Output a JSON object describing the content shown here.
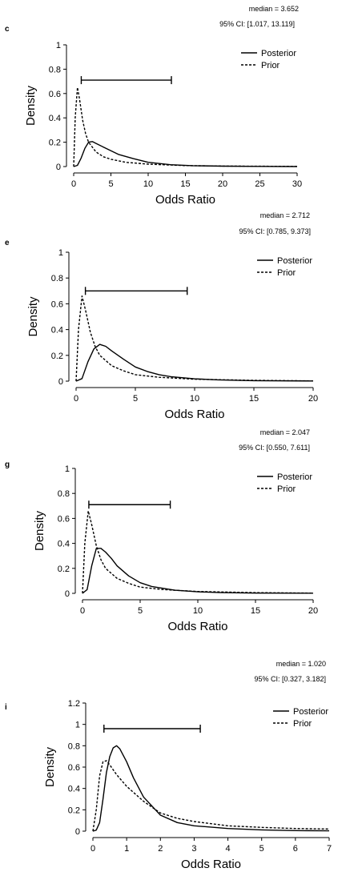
{
  "chart_data": [
    {
      "type": "line",
      "panel_label": "c",
      "annotation_median": "median = 3.652",
      "annotation_ci": "95% CI: [1.017, 13.119]",
      "xlabel": "Odds Ratio",
      "ylabel": "Density",
      "xlim": [
        0,
        30
      ],
      "ylim": [
        0,
        1
      ],
      "xticks": [
        "0",
        "5",
        "10",
        "15",
        "20",
        "25",
        "30"
      ],
      "yticks": [
        "0",
        "0.2",
        "0.4",
        "0.6",
        "0.8",
        "1"
      ],
      "ci_interval": [
        1.017,
        13.119
      ],
      "ci_level_y": 0.71,
      "legend": {
        "position": "top-right",
        "entries": [
          "Posterior",
          "Prior"
        ]
      },
      "series": [
        {
          "name": "Posterior",
          "style": "solid",
          "x": [
            0,
            0.5,
            1,
            1.5,
            2,
            2.5,
            3,
            4,
            5,
            6,
            8,
            10,
            13,
            16,
            20,
            25,
            30
          ],
          "y": [
            0,
            0.01,
            0.07,
            0.15,
            0.2,
            0.205,
            0.19,
            0.16,
            0.13,
            0.1,
            0.065,
            0.035,
            0.015,
            0.007,
            0.003,
            0.001,
            0
          ]
        },
        {
          "name": "Prior",
          "style": "dashed",
          "x": [
            0,
            0.2,
            0.5,
            0.8,
            1.2,
            1.6,
            2,
            3,
            4,
            5,
            7,
            10,
            15,
            20,
            30
          ],
          "y": [
            0,
            0.4,
            0.65,
            0.55,
            0.38,
            0.27,
            0.2,
            0.12,
            0.08,
            0.06,
            0.035,
            0.02,
            0.008,
            0.004,
            0.001
          ]
        }
      ]
    },
    {
      "type": "line",
      "panel_label": "e",
      "annotation_median": "median = 2.712",
      "annotation_ci": "95% CI: [0.785, 9.373]",
      "xlabel": "Odds Ratio",
      "ylabel": "Density",
      "xlim": [
        0,
        20
      ],
      "ylim": [
        0,
        1
      ],
      "xticks": [
        "0",
        "5",
        "10",
        "15",
        "20"
      ],
      "yticks": [
        "0",
        "0.2",
        "0.4",
        "0.6",
        "0.8",
        "1"
      ],
      "ci_interval": [
        0.785,
        9.373
      ],
      "ci_level_y": 0.7,
      "legend": {
        "position": "top-right",
        "entries": [
          "Posterior",
          "Prior"
        ]
      },
      "series": [
        {
          "name": "Posterior",
          "style": "solid",
          "x": [
            0,
            0.5,
            1,
            1.5,
            2,
            2.5,
            3,
            4,
            5,
            6,
            7,
            8,
            10,
            12,
            15,
            20
          ],
          "y": [
            0,
            0.02,
            0.15,
            0.25,
            0.285,
            0.27,
            0.235,
            0.17,
            0.11,
            0.075,
            0.05,
            0.035,
            0.018,
            0.01,
            0.004,
            0.001
          ]
        },
        {
          "name": "Prior",
          "style": "dashed",
          "x": [
            0,
            0.2,
            0.5,
            0.8,
            1.2,
            1.6,
            2,
            3,
            4,
            5,
            7,
            10,
            15,
            20
          ],
          "y": [
            0,
            0.4,
            0.66,
            0.55,
            0.38,
            0.27,
            0.2,
            0.12,
            0.08,
            0.05,
            0.03,
            0.015,
            0.006,
            0.002
          ]
        }
      ]
    },
    {
      "type": "line",
      "panel_label": "g",
      "annotation_median": "median = 2.047",
      "annotation_ci": "95% CI: [0.550, 7.611]",
      "xlabel": "Odds Ratio",
      "ylabel": "Density",
      "xlim": [
        0,
        20
      ],
      "ylim": [
        0,
        1
      ],
      "xticks": [
        "0",
        "5",
        "10",
        "15",
        "20"
      ],
      "yticks": [
        "0",
        "0.2",
        "0.4",
        "0.6",
        "0.8",
        "1"
      ],
      "ci_interval": [
        0.55,
        7.611
      ],
      "ci_level_y": 0.71,
      "legend": {
        "position": "top-right",
        "entries": [
          "Posterior",
          "Prior"
        ]
      },
      "series": [
        {
          "name": "Posterior",
          "style": "solid",
          "x": [
            0,
            0.4,
            0.8,
            1.2,
            1.6,
            2,
            2.5,
            3,
            4,
            5,
            6,
            8,
            10,
            12,
            15,
            20
          ],
          "y": [
            0,
            0.03,
            0.22,
            0.36,
            0.36,
            0.33,
            0.28,
            0.22,
            0.14,
            0.085,
            0.055,
            0.025,
            0.012,
            0.006,
            0.002,
            0.001
          ]
        },
        {
          "name": "Prior",
          "style": "dashed",
          "x": [
            0,
            0.2,
            0.5,
            0.8,
            1.2,
            1.6,
            2,
            3,
            4,
            5,
            7,
            10,
            15,
            20
          ],
          "y": [
            0,
            0.4,
            0.66,
            0.55,
            0.38,
            0.27,
            0.2,
            0.12,
            0.08,
            0.05,
            0.03,
            0.015,
            0.006,
            0.002
          ]
        }
      ]
    },
    {
      "type": "line",
      "panel_label": "i",
      "annotation_median": "median = 1.020",
      "annotation_ci": "95% CI: [0.327, 3.182]",
      "xlabel": "Odds Ratio",
      "ylabel": "Density",
      "xlim": [
        0,
        7
      ],
      "ylim": [
        0,
        1.2
      ],
      "xticks": [
        "0",
        "1",
        "2",
        "3",
        "4",
        "5",
        "6",
        "7"
      ],
      "yticks": [
        "0",
        "0.2",
        "0.4",
        "0.6",
        "0.8",
        "1",
        "1.2"
      ],
      "ci_interval": [
        0.327,
        3.182
      ],
      "ci_level_y": 0.96,
      "legend": {
        "position": "top-right",
        "entries": [
          "Posterior",
          "Prior"
        ]
      },
      "series": [
        {
          "name": "Posterior",
          "style": "solid",
          "x": [
            0,
            0.1,
            0.2,
            0.3,
            0.4,
            0.5,
            0.6,
            0.7,
            0.8,
            1,
            1.2,
            1.5,
            2,
            2.5,
            3,
            4,
            5,
            6,
            7
          ],
          "y": [
            0,
            0.01,
            0.08,
            0.3,
            0.55,
            0.7,
            0.78,
            0.8,
            0.77,
            0.65,
            0.5,
            0.32,
            0.15,
            0.08,
            0.05,
            0.025,
            0.012,
            0.005,
            0.003
          ]
        },
        {
          "name": "Prior",
          "style": "dashed",
          "x": [
            0,
            0.1,
            0.2,
            0.3,
            0.4,
            0.5,
            0.7,
            1,
            1.5,
            2,
            2.5,
            3,
            4,
            5,
            6,
            7
          ],
          "y": [
            0,
            0.2,
            0.52,
            0.65,
            0.66,
            0.62,
            0.53,
            0.42,
            0.28,
            0.17,
            0.12,
            0.09,
            0.05,
            0.035,
            0.025,
            0.02
          ]
        }
      ]
    }
  ]
}
